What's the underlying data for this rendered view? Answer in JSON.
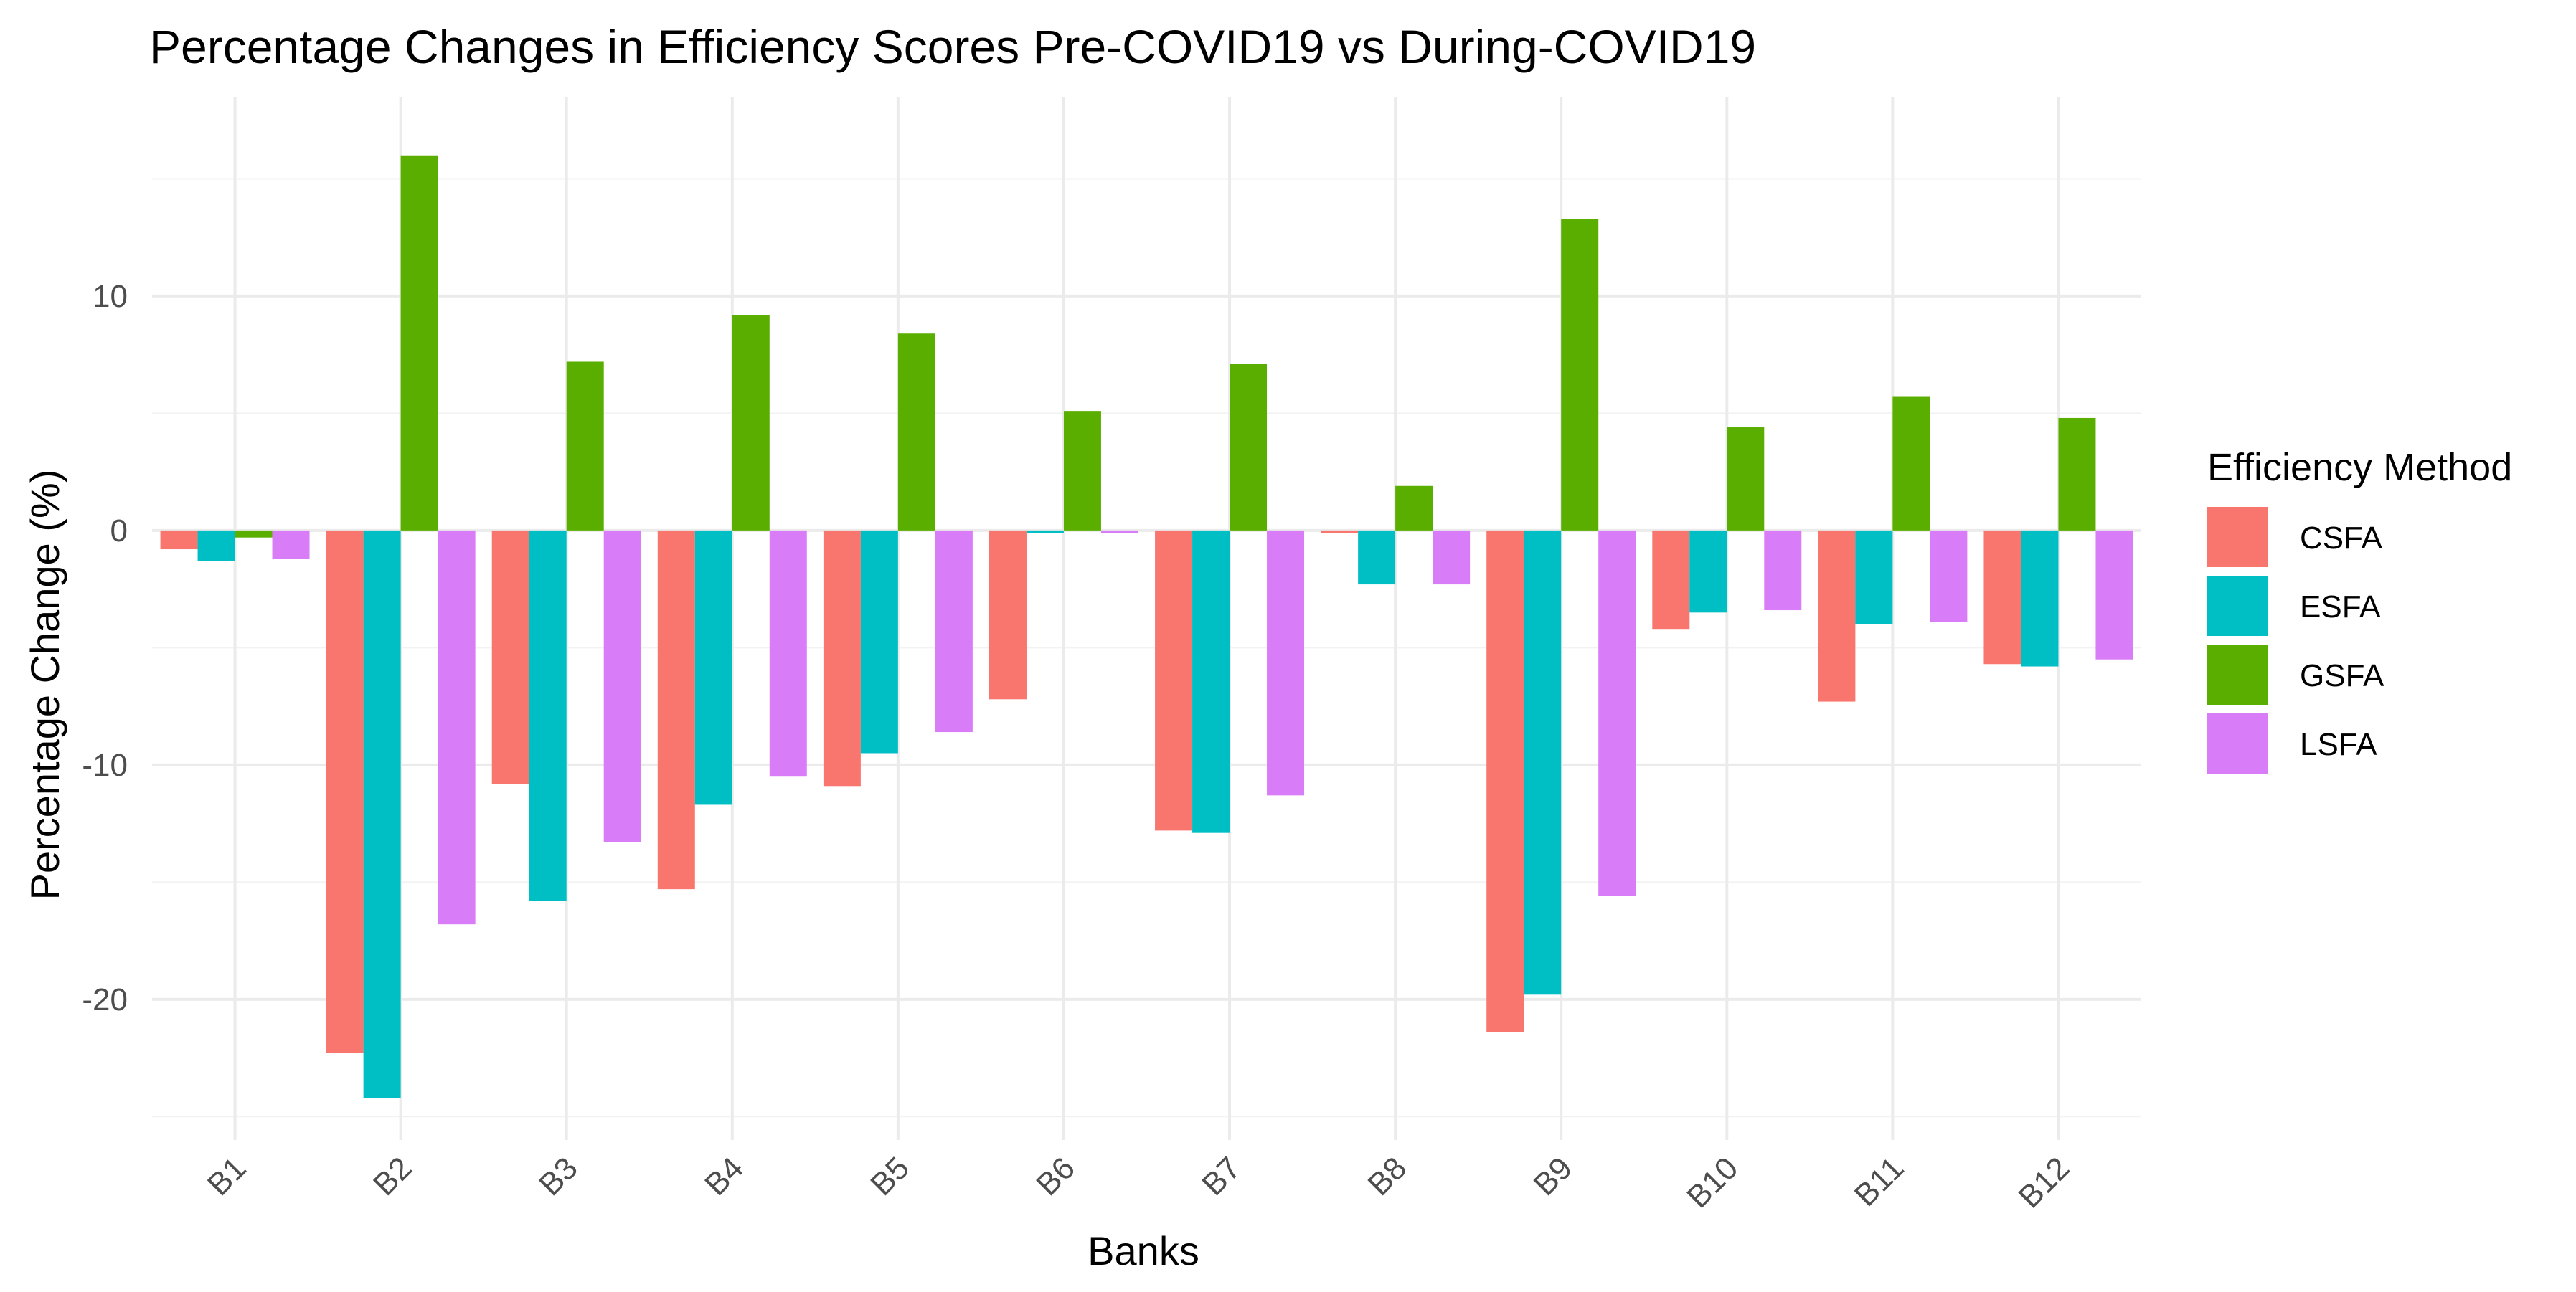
{
  "chart_data": {
    "type": "bar",
    "title": "Percentage Changes in Efficiency Scores Pre-COVID19 vs During-COVID19",
    "xlabel": "Banks",
    "ylabel": "Percentage Change (%)",
    "ylim": [
      -26,
      18.5
    ],
    "yticks": [
      10,
      0,
      -10,
      -20
    ],
    "grid": true,
    "legend_position": "right",
    "legend_title": "Efficiency Method",
    "categories": [
      "B1",
      "B2",
      "B3",
      "B4",
      "B5",
      "B6",
      "B7",
      "B8",
      "B9",
      "B10",
      "B11",
      "B12"
    ],
    "series": [
      {
        "name": "CSFA",
        "color": "#F8766D",
        "values": [
          -0.8,
          -22.3,
          -10.8,
          -15.3,
          -10.9,
          -7.2,
          -12.8,
          -0.1,
          -21.4,
          -4.2,
          -7.3,
          -5.7
        ]
      },
      {
        "name": "ESFA",
        "color": "#00BFC4",
        "values": [
          -1.3,
          -24.2,
          -15.8,
          -11.7,
          -9.5,
          -0.1,
          -12.9,
          -2.3,
          -19.8,
          -3.5,
          -4.0,
          -5.8
        ]
      },
      {
        "name": "GSFA",
        "color": "#5AAE00",
        "values": [
          -0.3,
          16.0,
          7.2,
          9.2,
          8.4,
          5.1,
          7.1,
          1.9,
          13.3,
          4.4,
          5.7,
          4.8
        ]
      },
      {
        "name": "LSFA",
        "color": "#D97CF7",
        "values": [
          -1.2,
          -16.8,
          -13.3,
          -10.5,
          -8.6,
          -0.1,
          -11.3,
          -2.3,
          -15.6,
          -3.4,
          -3.9,
          -5.5
        ]
      }
    ]
  }
}
